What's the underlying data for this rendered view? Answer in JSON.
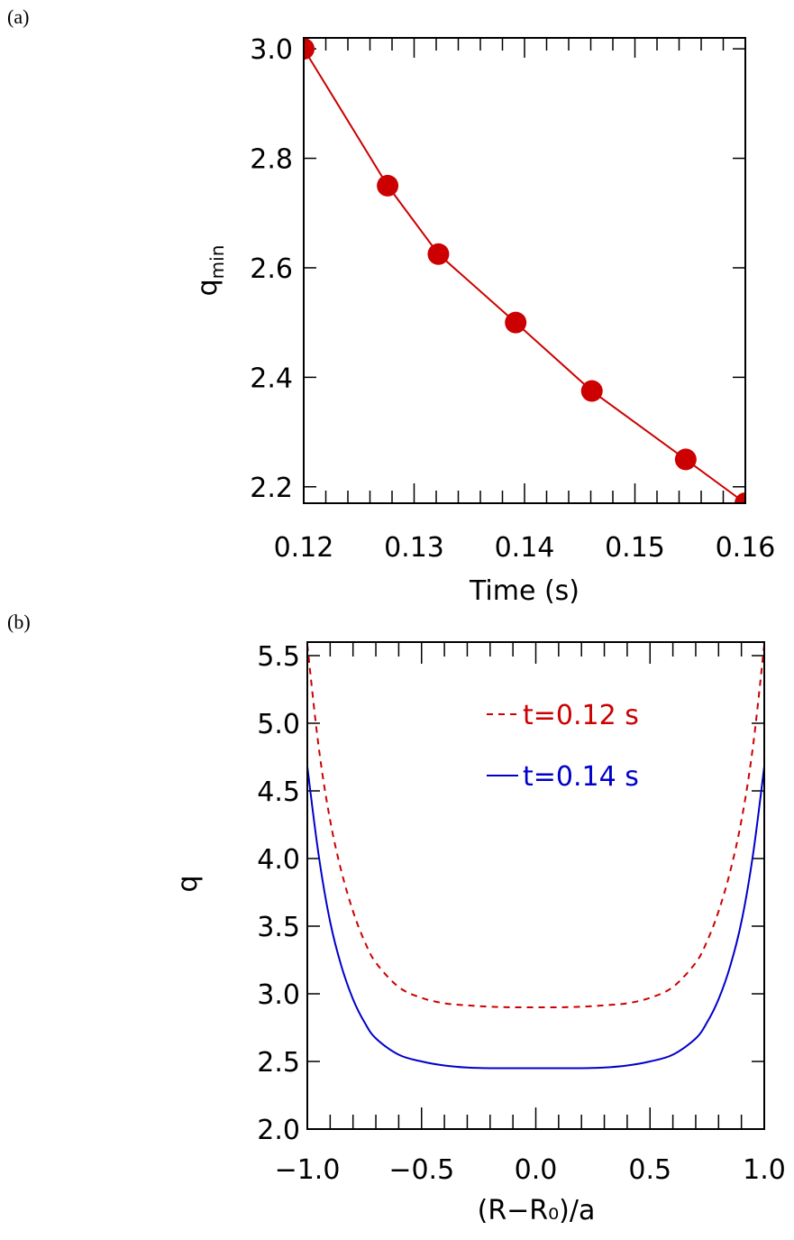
{
  "chart_data": [
    {
      "panel_label": "(a)",
      "type": "scatter",
      "xlabel": "Time (s)",
      "ylabel_main": "q",
      "ylabel_sub": "min",
      "xlim": [
        0.12,
        0.16
      ],
      "ylim": [
        2.17,
        3.02
      ],
      "xticks": [
        0.12,
        0.13,
        0.14,
        0.15,
        0.16
      ],
      "xtick_labels": [
        "0.12",
        "0.13",
        "0.14",
        "0.15",
        "0.16"
      ],
      "yticks": [
        2.2,
        2.4,
        2.6,
        2.8,
        3.0
      ],
      "ytick_labels": [
        "2.2",
        "2.4",
        "2.6",
        "2.8",
        "3.0"
      ],
      "grid": false,
      "color": "#cc0000",
      "series": [
        {
          "x": [
            0.12,
            0.1276,
            0.1322,
            0.1392,
            0.1461,
            0.1546,
            0.16
          ],
          "y": [
            3.0,
            2.75,
            2.625,
            2.5,
            2.375,
            2.25,
            2.17
          ]
        }
      ]
    },
    {
      "panel_label": "(b)",
      "type": "line",
      "xlabel": "(R−R₀)/a",
      "ylabel": "q",
      "xlim": [
        -1.0,
        1.0
      ],
      "ylim": [
        2.0,
        5.6
      ],
      "xticks": [
        -1.0,
        -0.5,
        0.0,
        0.5,
        1.0
      ],
      "xtick_labels": [
        "−1.0",
        "−0.5",
        "0.0",
        "0.5",
        "1.0"
      ],
      "yticks": [
        2.0,
        2.5,
        3.0,
        3.5,
        4.0,
        4.5,
        5.0,
        5.5
      ],
      "ytick_labels": [
        "2.0",
        "2.5",
        "3.0",
        "3.5",
        "4.0",
        "4.5",
        "5.0",
        "5.5"
      ],
      "grid": false,
      "legend_position": "top-right",
      "series": [
        {
          "name": "t=0.12 s",
          "color": "#cc0000",
          "style": "dashed",
          "x": [
            -1.0,
            -0.95,
            -0.9,
            -0.85,
            -0.8,
            -0.75,
            -0.7,
            -0.6,
            -0.5,
            -0.4,
            -0.3,
            -0.2,
            -0.1,
            0.0,
            0.1,
            0.2,
            0.3,
            0.4,
            0.5,
            0.6,
            0.7,
            0.75,
            0.8,
            0.85,
            0.9,
            0.95,
            1.0
          ],
          "y": [
            5.58,
            4.82,
            4.28,
            3.9,
            3.61,
            3.39,
            3.23,
            3.05,
            2.97,
            2.93,
            2.915,
            2.905,
            2.9,
            2.9,
            2.9,
            2.905,
            2.915,
            2.93,
            2.97,
            3.05,
            3.23,
            3.39,
            3.61,
            3.9,
            4.28,
            4.82,
            5.58
          ]
        },
        {
          "name": "t=0.14 s",
          "color": "#0000cc",
          "style": "solid",
          "x": [
            -1.0,
            -0.95,
            -0.9,
            -0.85,
            -0.8,
            -0.75,
            -0.7,
            -0.6,
            -0.5,
            -0.4,
            -0.3,
            -0.2,
            -0.1,
            0.0,
            0.1,
            0.2,
            0.3,
            0.4,
            0.5,
            0.6,
            0.7,
            0.75,
            0.8,
            0.85,
            0.9,
            0.95,
            1.0
          ],
          "y": [
            4.68,
            4.02,
            3.53,
            3.2,
            2.96,
            2.79,
            2.67,
            2.55,
            2.5,
            2.47,
            2.455,
            2.45,
            2.45,
            2.45,
            2.45,
            2.45,
            2.455,
            2.47,
            2.5,
            2.55,
            2.67,
            2.79,
            2.96,
            3.2,
            3.53,
            4.02,
            4.68
          ]
        }
      ]
    }
  ]
}
